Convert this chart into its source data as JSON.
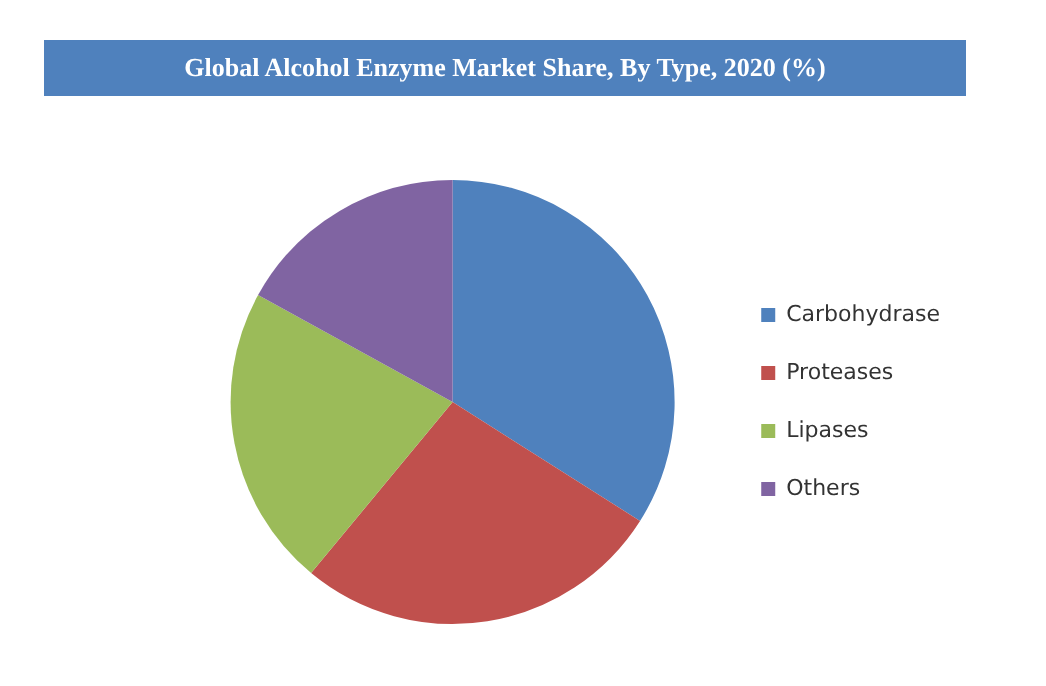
{
  "chart_data": {
    "type": "pie",
    "title": "Global Alcohol Enzyme Market Share, By Type, 2020 (%)",
    "categories": [
      "Carbohydrase",
      "Proteases",
      "Lipases",
      "Others"
    ],
    "values": [
      34,
      27,
      22,
      17
    ],
    "colors": [
      "#4f81bd",
      "#c0504d",
      "#9bbb59",
      "#8064a2"
    ],
    "legend": "right"
  }
}
